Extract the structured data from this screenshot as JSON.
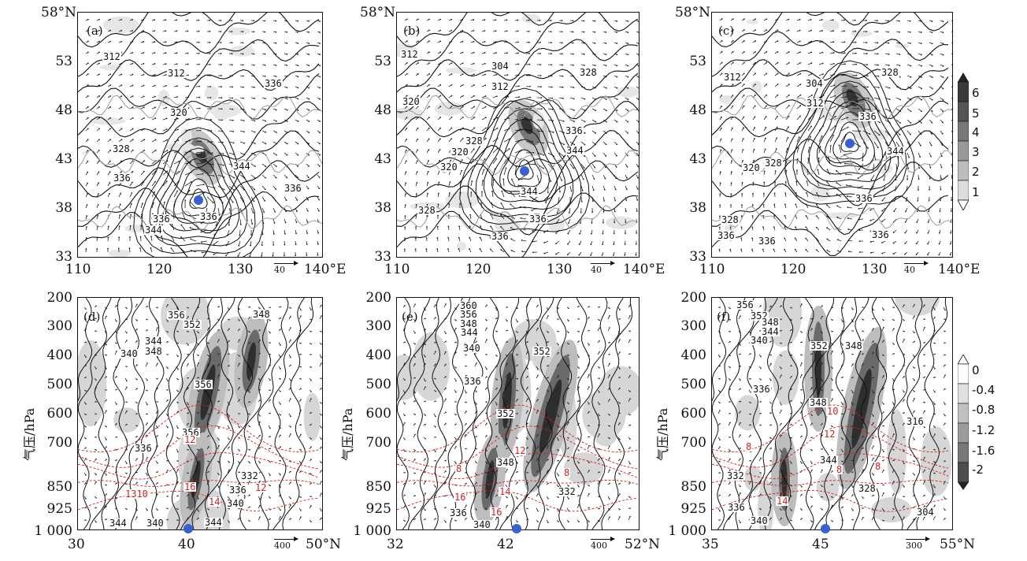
{
  "top_panels": [
    {
      "label": "(a)",
      "contours": [
        "312",
        "312",
        "336",
        "320",
        "328",
        "336",
        "344",
        "336",
        "336",
        "344",
        "336"
      ]
    },
    {
      "label": "(b)",
      "contours": [
        "320",
        "312",
        "304",
        "312",
        "328",
        "320",
        "336",
        "328",
        "344",
        "320",
        "344",
        "328",
        "336",
        "336"
      ]
    },
    {
      "label": "(c)",
      "contours": [
        "312",
        "304",
        "328",
        "312",
        "336",
        "320",
        "328",
        "344",
        "336",
        "328",
        "336",
        "336",
        "336"
      ]
    }
  ],
  "top_yticks": [
    "58°N",
    "53",
    "48",
    "43",
    "38",
    "33"
  ],
  "top_xticks": [
    "110",
    "120",
    "130",
    "140°E"
  ],
  "top_vector_ref": "40",
  "top_colorbar": {
    "ticks": [
      "6",
      "5",
      "4",
      "3",
      "2",
      "1"
    ]
  },
  "bottom_panels": [
    {
      "label": "(d)",
      "xticks": [
        "30",
        "40",
        "50°N"
      ],
      "vector_ref": "400",
      "contours": [
        "356",
        "352",
        "348",
        "344",
        "340",
        "348",
        "356",
        "356",
        "336",
        "332",
        "336",
        "340",
        "344",
        "340",
        "344"
      ],
      "red": [
        "12",
        "1310",
        "16",
        "14",
        "12"
      ]
    },
    {
      "label": "(e)",
      "xticks": [
        "32",
        "42",
        "52°N"
      ],
      "vector_ref": "400",
      "contours": [
        "360",
        "356",
        "348",
        "344",
        "340",
        "352",
        "336",
        "352",
        "348",
        "332",
        "336",
        "340"
      ],
      "red": [
        "12",
        "8",
        "14",
        "16",
        "8",
        "16"
      ]
    },
    {
      "label": "(f)",
      "xticks": [
        "35",
        "45",
        "55°N"
      ],
      "vector_ref": "300",
      "contours": [
        "356",
        "352",
        "348",
        "344",
        "340",
        "352",
        "348",
        "336",
        "348",
        "344",
        "316",
        "332",
        "328",
        "336",
        "340",
        "304"
      ],
      "red": [
        "8",
        "10",
        "12",
        "8",
        "8",
        "14"
      ]
    }
  ],
  "bottom_yticks": [
    "200",
    "300",
    "400",
    "500",
    "600",
    "700",
    "850",
    "925",
    "1 000"
  ],
  "bottom_ylabel": "气压/hPa",
  "bottom_colorbar": {
    "ticks": [
      "0",
      "-0.4",
      "-0.8",
      "-1.2",
      "-1.6",
      "-2"
    ]
  },
  "colors": {
    "accent": "#3a5fd0",
    "red_contour": "#d42020"
  }
}
